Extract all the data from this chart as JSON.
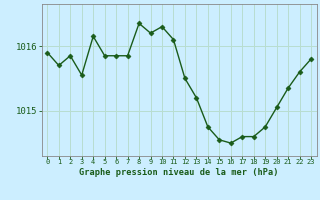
{
  "x": [
    0,
    1,
    2,
    3,
    4,
    5,
    6,
    7,
    8,
    9,
    10,
    11,
    12,
    13,
    14,
    15,
    16,
    17,
    18,
    19,
    20,
    21,
    22,
    23
  ],
  "y": [
    1015.9,
    1015.7,
    1015.85,
    1015.55,
    1016.15,
    1015.85,
    1015.85,
    1015.85,
    1016.35,
    1016.2,
    1016.3,
    1016.1,
    1015.5,
    1015.2,
    1014.75,
    1014.55,
    1014.5,
    1014.6,
    1014.6,
    1014.75,
    1015.05,
    1015.35,
    1015.6,
    1015.8
  ],
  "line_color": "#1a5c1a",
  "marker_color": "#1a5c1a",
  "bg_color": "#cceeff",
  "grid_color": "#b8ddd0",
  "title": "Graphe pression niveau de la mer (hPa)",
  "xlabel_ticks": [
    "0",
    "1",
    "2",
    "3",
    "4",
    "5",
    "6",
    "7",
    "8",
    "9",
    "10",
    "11",
    "12",
    "13",
    "14",
    "15",
    "16",
    "17",
    "18",
    "19",
    "20",
    "21",
    "22",
    "23"
  ],
  "yticks": [
    1015,
    1016
  ],
  "ylim": [
    1014.3,
    1016.65
  ],
  "xlim": [
    -0.5,
    23.5
  ],
  "title_color": "#1a5c1a",
  "tick_color": "#1a5c1a",
  "spine_color": "#888888"
}
